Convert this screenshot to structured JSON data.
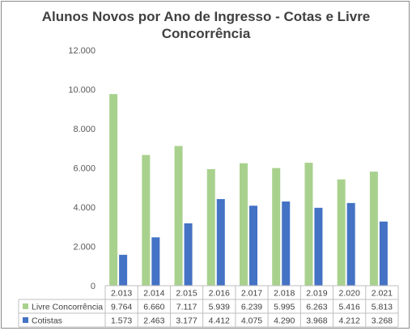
{
  "chart_data": {
    "type": "bar",
    "title_line1": "Alunos Novos por Ano de Ingresso - Cotas e Livre",
    "title_line2": "Concorrência",
    "categories": [
      "2.013",
      "2.014",
      "2.015",
      "2.016",
      "2.017",
      "2.018",
      "2.019",
      "2.020",
      "2.021"
    ],
    "series": [
      {
        "name": "Livre Concorrência",
        "color": "#a9d18e",
        "values": [
          9764,
          6660,
          7117,
          5939,
          6239,
          5995,
          6263,
          5416,
          5813
        ],
        "labels": [
          "9.764",
          "6.660",
          "7.117",
          "5.939",
          "6.239",
          "5.995",
          "6.263",
          "5.416",
          "5.813"
        ]
      },
      {
        "name": "Cotistas",
        "color": "#4472c4",
        "values": [
          1573,
          2463,
          3177,
          4412,
          4075,
          4290,
          3968,
          4212,
          3268
        ],
        "labels": [
          "1.573",
          "2.463",
          "3.177",
          "4.412",
          "4.075",
          "4.290",
          "3.968",
          "4.212",
          "3.268"
        ]
      }
    ],
    "ylim": [
      0,
      12000
    ],
    "yticks": [
      0,
      2000,
      4000,
      6000,
      8000,
      10000,
      12000
    ],
    "ytick_labels": [
      "0",
      "2.000",
      "4.000",
      "6.000",
      "8.000",
      "10.000",
      "12.000"
    ],
    "grid": false,
    "legend": "data-table"
  }
}
